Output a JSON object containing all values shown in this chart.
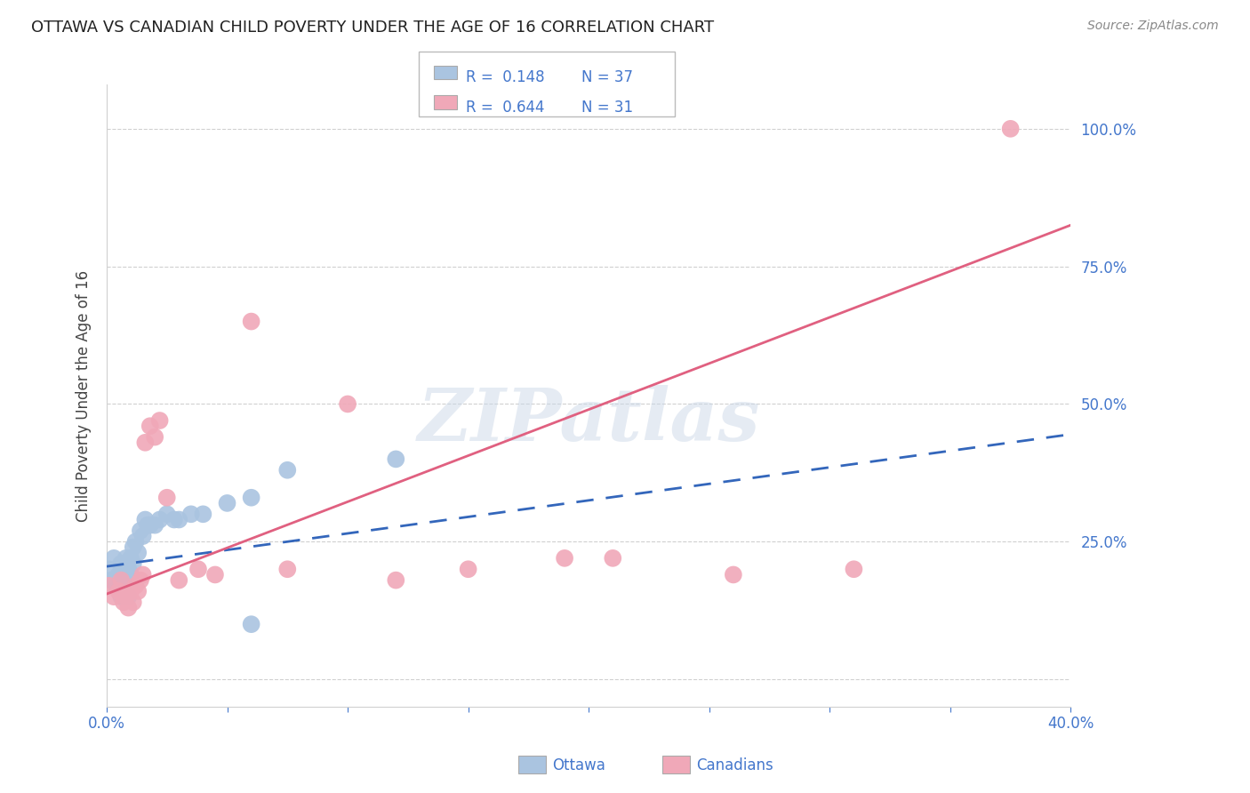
{
  "title": "OTTAWA VS CANADIAN CHILD POVERTY UNDER THE AGE OF 16 CORRELATION CHART",
  "source": "Source: ZipAtlas.com",
  "ylabel": "Child Poverty Under the Age of 16",
  "xlim": [
    0.0,
    0.4
  ],
  "ylim": [
    -0.05,
    1.08
  ],
  "ytick_positions": [
    0.0,
    0.25,
    0.5,
    0.75,
    1.0
  ],
  "ytick_labels": [
    "",
    "25.0%",
    "50.0%",
    "75.0%",
    "100.0%"
  ],
  "grid_color": "#d0d0d0",
  "background_color": "#ffffff",
  "watermark_text": "ZIPatlas",
  "ottawa_color": "#aac4e0",
  "canadian_color": "#f0a8b8",
  "ottawa_line_color": "#3366bb",
  "canadian_line_color": "#e06080",
  "title_color": "#222222",
  "source_color": "#888888",
  "axis_label_color": "#444444",
  "tick_label_color": "#4477cc",
  "legend_r1": "R =  0.148",
  "legend_n1": "N = 37",
  "legend_r2": "R =  0.644",
  "legend_n2": "N = 31",
  "ottawa_x": [
    0.001,
    0.002,
    0.003,
    0.004,
    0.005,
    0.005,
    0.006,
    0.006,
    0.007,
    0.007,
    0.008,
    0.008,
    0.009,
    0.009,
    0.01,
    0.01,
    0.011,
    0.011,
    0.012,
    0.013,
    0.014,
    0.015,
    0.016,
    0.017,
    0.018,
    0.02,
    0.022,
    0.025,
    0.028,
    0.03,
    0.035,
    0.04,
    0.05,
    0.06,
    0.075,
    0.12,
    0.06
  ],
  "ottawa_y": [
    0.2,
    0.18,
    0.22,
    0.17,
    0.19,
    0.16,
    0.21,
    0.15,
    0.2,
    0.17,
    0.22,
    0.18,
    0.2,
    0.15,
    0.22,
    0.19,
    0.24,
    0.21,
    0.25,
    0.23,
    0.27,
    0.26,
    0.29,
    0.28,
    0.28,
    0.28,
    0.29,
    0.3,
    0.29,
    0.29,
    0.3,
    0.3,
    0.32,
    0.33,
    0.38,
    0.4,
    0.1
  ],
  "canadian_x": [
    0.001,
    0.003,
    0.005,
    0.006,
    0.007,
    0.008,
    0.009,
    0.01,
    0.011,
    0.012,
    0.013,
    0.014,
    0.015,
    0.016,
    0.018,
    0.02,
    0.022,
    0.025,
    0.03,
    0.038,
    0.045,
    0.06,
    0.075,
    0.1,
    0.12,
    0.15,
    0.19,
    0.21,
    0.26,
    0.31,
    0.375
  ],
  "canadian_y": [
    0.17,
    0.15,
    0.16,
    0.18,
    0.14,
    0.15,
    0.13,
    0.16,
    0.14,
    0.17,
    0.16,
    0.18,
    0.19,
    0.43,
    0.46,
    0.44,
    0.47,
    0.33,
    0.18,
    0.2,
    0.19,
    0.65,
    0.2,
    0.5,
    0.18,
    0.2,
    0.22,
    0.22,
    0.19,
    0.2,
    1.0
  ],
  "ottawa_line_x": [
    0.0,
    0.4
  ],
  "ottawa_line_y": [
    0.205,
    0.445
  ],
  "canadian_line_x": [
    0.0,
    0.4
  ],
  "canadian_line_y": [
    0.155,
    0.825
  ]
}
